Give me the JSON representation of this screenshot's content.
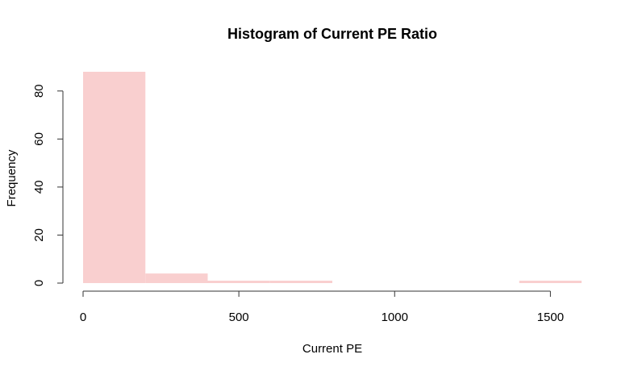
{
  "chart_data": {
    "type": "bar",
    "title": "Histogram of Current PE Ratio",
    "xlabel": "Current PE",
    "ylabel": "Frequency",
    "bins": [
      {
        "x0": 0,
        "x1": 200,
        "count": 88
      },
      {
        "x0": 200,
        "x1": 400,
        "count": 4
      },
      {
        "x0": 400,
        "x1": 600,
        "count": 1
      },
      {
        "x0": 600,
        "x1": 800,
        "count": 1
      },
      {
        "x0": 800,
        "x1": 1000,
        "count": 0
      },
      {
        "x0": 1000,
        "x1": 1200,
        "count": 0
      },
      {
        "x0": 1200,
        "x1": 1400,
        "count": 0
      },
      {
        "x0": 1400,
        "x1": 1600,
        "count": 1
      }
    ],
    "xlim": [
      0,
      1600
    ],
    "ylim": [
      0,
      88
    ],
    "x_ticks": [
      0,
      500,
      1000,
      1500
    ],
    "y_ticks": [
      0,
      20,
      40,
      60,
      80
    ],
    "bar_color": "#f9cfcf",
    "grid": false,
    "legend": "none"
  }
}
